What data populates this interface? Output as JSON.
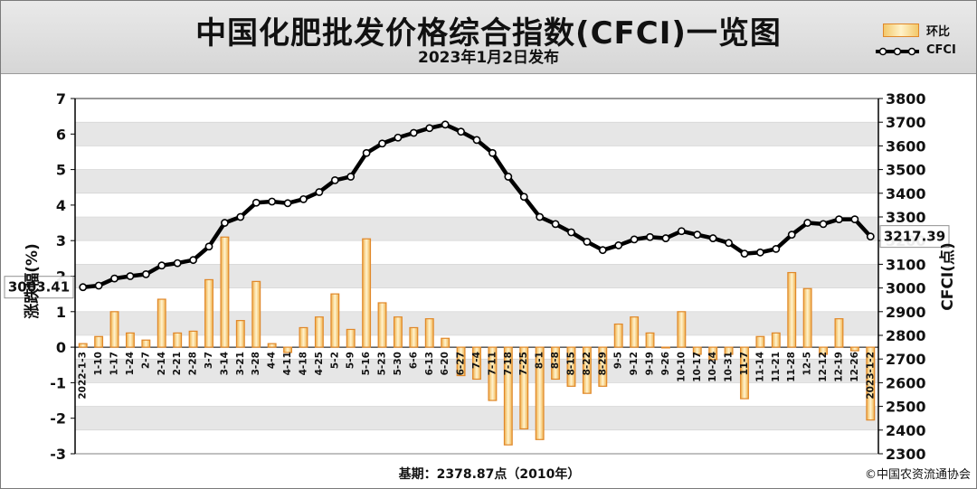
{
  "title": "中国化肥批发价格综合指数(CFCI)一览图",
  "subtitle": "2023年1月2日发布",
  "legend": {
    "bar": "环比",
    "line": "CFCI"
  },
  "footer": {
    "base": "基期：2378.87点（2010年）",
    "copyright": "©中国农资流通协会"
  },
  "colors": {
    "bar_edge": "#e0882a",
    "bar_fill": "#f6d27c",
    "line": "#000000",
    "band": "#e6e6e6"
  },
  "chart_data": {
    "type": "bar+line",
    "ylabel_left": "涨跌幅(%)",
    "ylabel_right": "CFCI(点)",
    "ylim_left": [
      -3,
      7
    ],
    "ylim_right": [
      2300,
      3800
    ],
    "yticks_left": [
      -3,
      -2,
      -1,
      0,
      1,
      2,
      3,
      4,
      5,
      6,
      7
    ],
    "yticks_right": [
      2300,
      2400,
      2500,
      2600,
      2700,
      2800,
      2900,
      3000,
      3100,
      3200,
      3300,
      3400,
      3500,
      3600,
      3700,
      3800
    ],
    "categories": [
      "2022-1-3",
      "1-10",
      "1-17",
      "1-24",
      "2-7",
      "2-14",
      "2-21",
      "2-28",
      "3-7",
      "3-14",
      "3-21",
      "3-28",
      "4-4",
      "4-11",
      "4-18",
      "4-25",
      "5-2",
      "5-9",
      "5-16",
      "5-23",
      "5-30",
      "6-6",
      "6-13",
      "6-20",
      "6-27",
      "7-4",
      "7-11",
      "7-18",
      "7-25",
      "8-1",
      "8-8",
      "8-15",
      "8-22",
      "8-29",
      "9-5",
      "9-12",
      "9-19",
      "9-26",
      "10-10",
      "10-17",
      "10-24",
      "10-31",
      "11-7",
      "11-14",
      "11-21",
      "11-28",
      "12-5",
      "12-12",
      "12-19",
      "12-26",
      "2023-1-2"
    ],
    "series": [
      {
        "name": "环比",
        "type": "bar",
        "values": [
          0.1,
          0.3,
          1.0,
          0.4,
          0.2,
          1.35,
          0.4,
          0.45,
          1.9,
          3.1,
          0.75,
          1.85,
          0.1,
          -0.15,
          0.55,
          0.85,
          1.5,
          0.5,
          3.05,
          1.25,
          0.85,
          0.55,
          0.8,
          0.25,
          -0.8,
          -0.9,
          -1.5,
          -2.75,
          -2.3,
          -2.6,
          -0.9,
          -1.1,
          -1.3,
          -1.1,
          0.65,
          0.85,
          0.4,
          0.0,
          1.0,
          -0.2,
          -0.35,
          -0.2,
          -1.45,
          0.3,
          0.4,
          2.1,
          1.65,
          -0.2,
          0.8,
          -0.1,
          -2.05
        ]
      },
      {
        "name": "CFCI",
        "type": "line",
        "values": [
          3003.41,
          3010,
          3040,
          3050,
          3058,
          3095,
          3105,
          3118,
          3175,
          3275,
          3300,
          3360,
          3365,
          3358,
          3375,
          3405,
          3455,
          3470,
          3570,
          3610,
          3635,
          3655,
          3675,
          3690,
          3660,
          3625,
          3570,
          3470,
          3385,
          3300,
          3270,
          3235,
          3195,
          3160,
          3180,
          3205,
          3215,
          3210,
          3240,
          3225,
          3210,
          3190,
          3145,
          3150,
          3165,
          3225,
          3275,
          3270,
          3290,
          3290,
          3217.39
        ]
      }
    ],
    "annotations": [
      {
        "label": "3003.41",
        "series": "CFCI",
        "at": "2022-1-3"
      },
      {
        "label": "3217.39",
        "series": "CFCI",
        "at": "2023-1-2"
      }
    ]
  }
}
